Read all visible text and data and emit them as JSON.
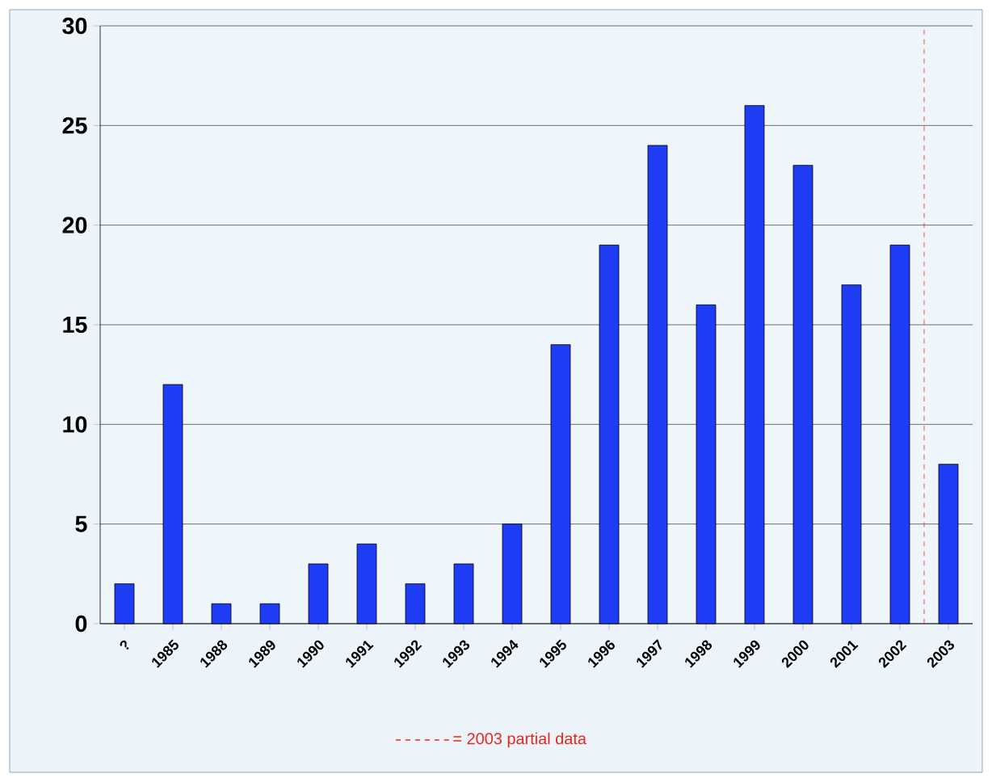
{
  "chart_data": {
    "type": "bar",
    "categories": [
      "?",
      "1985",
      "1988",
      "1989",
      "1990",
      "1991",
      "1992",
      "1993",
      "1994",
      "1995",
      "1996",
      "1997",
      "1998",
      "1999",
      "2000",
      "2001",
      "2002",
      "2003"
    ],
    "values": [
      2,
      12,
      1,
      1,
      3,
      4,
      2,
      3,
      5,
      14,
      19,
      24,
      16,
      26,
      23,
      17,
      19,
      8
    ],
    "color": "#1f3cf5",
    "ylim": [
      0,
      30
    ],
    "yticks": [
      0,
      5,
      10,
      15,
      20,
      25,
      30
    ],
    "grid": "y",
    "ref_lines": [
      {
        "axis": "x",
        "value": "2003",
        "label": "= 2003 partial data",
        "color": "#e8261e",
        "line_style": "dashed"
      }
    ]
  }
}
